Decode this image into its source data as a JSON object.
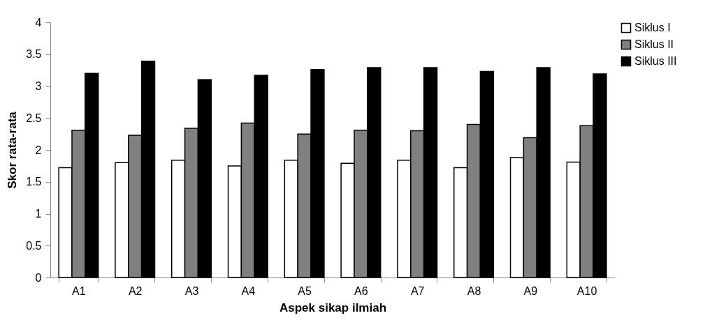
{
  "chart_data": {
    "type": "bar",
    "xlabel": "Aspek sikap ilmiah",
    "ylabel": "Skor rata-rata",
    "categories": [
      "A1",
      "A2",
      "A3",
      "A4",
      "A5",
      "A6",
      "A7",
      "A8",
      "A9",
      "A10"
    ],
    "series": [
      {
        "name": "Siklus I",
        "color": "#ffffff",
        "values": [
          1.72,
          1.8,
          1.84,
          1.75,
          1.84,
          1.79,
          1.84,
          1.72,
          1.88,
          1.81
        ]
      },
      {
        "name": "Siklus II",
        "color": "#808080",
        "values": [
          2.31,
          2.23,
          2.34,
          2.42,
          2.25,
          2.31,
          2.3,
          2.4,
          2.19,
          2.38
        ]
      },
      {
        "name": "Siklus III",
        "color": "#000000",
        "values": [
          3.2,
          3.39,
          3.1,
          3.17,
          3.26,
          3.29,
          3.29,
          3.23,
          3.29,
          3.19
        ]
      }
    ],
    "ylim": [
      0,
      4
    ],
    "yticks": [
      0,
      0.5,
      1,
      1.5,
      2,
      2.5,
      3,
      3.5,
      4
    ],
    "grid": false,
    "legend": "right"
  }
}
